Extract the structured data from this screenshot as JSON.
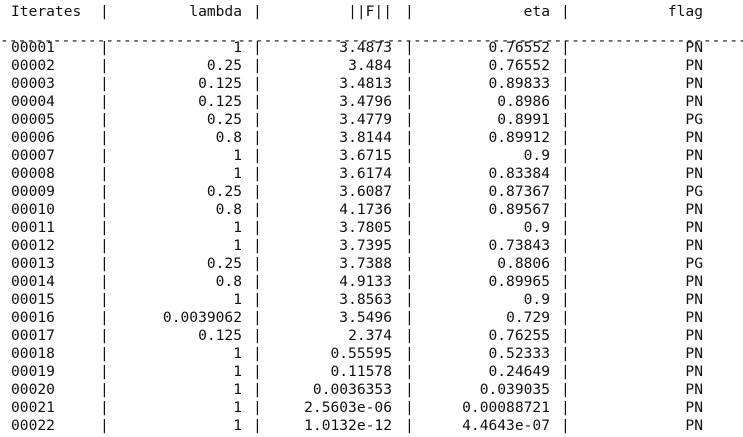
{
  "console": {
    "header": {
      "iterates": "Iterates",
      "lambda": "lambda",
      "normF": "||F||",
      "eta": "eta",
      "flag": "flag",
      "separator": "|"
    },
    "rule": "-----------------------------------------------------------------------------------------------------",
    "rows": [
      {
        "iter": "00001",
        "lambda": "1",
        "normF": "3.4873",
        "eta": "0.76552",
        "flag": "PN"
      },
      {
        "iter": "00002",
        "lambda": "0.25",
        "normF": "3.484",
        "eta": "0.76552",
        "flag": "PN"
      },
      {
        "iter": "00003",
        "lambda": "0.125",
        "normF": "3.4813",
        "eta": "0.89833",
        "flag": "PN"
      },
      {
        "iter": "00004",
        "lambda": "0.125",
        "normF": "3.4796",
        "eta": "0.8986",
        "flag": "PN"
      },
      {
        "iter": "00005",
        "lambda": "0.25",
        "normF": "3.4779",
        "eta": "0.8991",
        "flag": "PG"
      },
      {
        "iter": "00006",
        "lambda": "0.8",
        "normF": "3.8144",
        "eta": "0.89912",
        "flag": "PN"
      },
      {
        "iter": "00007",
        "lambda": "1",
        "normF": "3.6715",
        "eta": "0.9",
        "flag": "PN"
      },
      {
        "iter": "00008",
        "lambda": "1",
        "normF": "3.6174",
        "eta": "0.83384",
        "flag": "PN"
      },
      {
        "iter": "00009",
        "lambda": "0.25",
        "normF": "3.6087",
        "eta": "0.87367",
        "flag": "PG"
      },
      {
        "iter": "00010",
        "lambda": "0.8",
        "normF": "4.1736",
        "eta": "0.89567",
        "flag": "PN"
      },
      {
        "iter": "00011",
        "lambda": "1",
        "normF": "3.7805",
        "eta": "0.9",
        "flag": "PN"
      },
      {
        "iter": "00012",
        "lambda": "1",
        "normF": "3.7395",
        "eta": "0.73843",
        "flag": "PN"
      },
      {
        "iter": "00013",
        "lambda": "0.25",
        "normF": "3.7388",
        "eta": "0.8806",
        "flag": "PG"
      },
      {
        "iter": "00014",
        "lambda": "0.8",
        "normF": "4.9133",
        "eta": "0.89965",
        "flag": "PN"
      },
      {
        "iter": "00015",
        "lambda": "1",
        "normF": "3.8563",
        "eta": "0.9",
        "flag": "PN"
      },
      {
        "iter": "00016",
        "lambda": "0.0039062",
        "normF": "3.5496",
        "eta": "0.729",
        "flag": "PN"
      },
      {
        "iter": "00017",
        "lambda": "0.125",
        "normF": "2.374",
        "eta": "0.76255",
        "flag": "PN"
      },
      {
        "iter": "00018",
        "lambda": "1",
        "normF": "0.55595",
        "eta": "0.52333",
        "flag": "PN"
      },
      {
        "iter": "00019",
        "lambda": "1",
        "normF": "0.11578",
        "eta": "0.24649",
        "flag": "PN"
      },
      {
        "iter": "00020",
        "lambda": "1",
        "normF": "0.0036353",
        "eta": "0.039035",
        "flag": "PN"
      },
      {
        "iter": "00021",
        "lambda": "1",
        "normF": "2.5603e-06",
        "eta": "0.00088721",
        "flag": "PN"
      },
      {
        "iter": "00022",
        "lambda": "1",
        "normF": "1.0132e-12",
        "eta": "4.4643e-07",
        "flag": "PN"
      }
    ]
  }
}
